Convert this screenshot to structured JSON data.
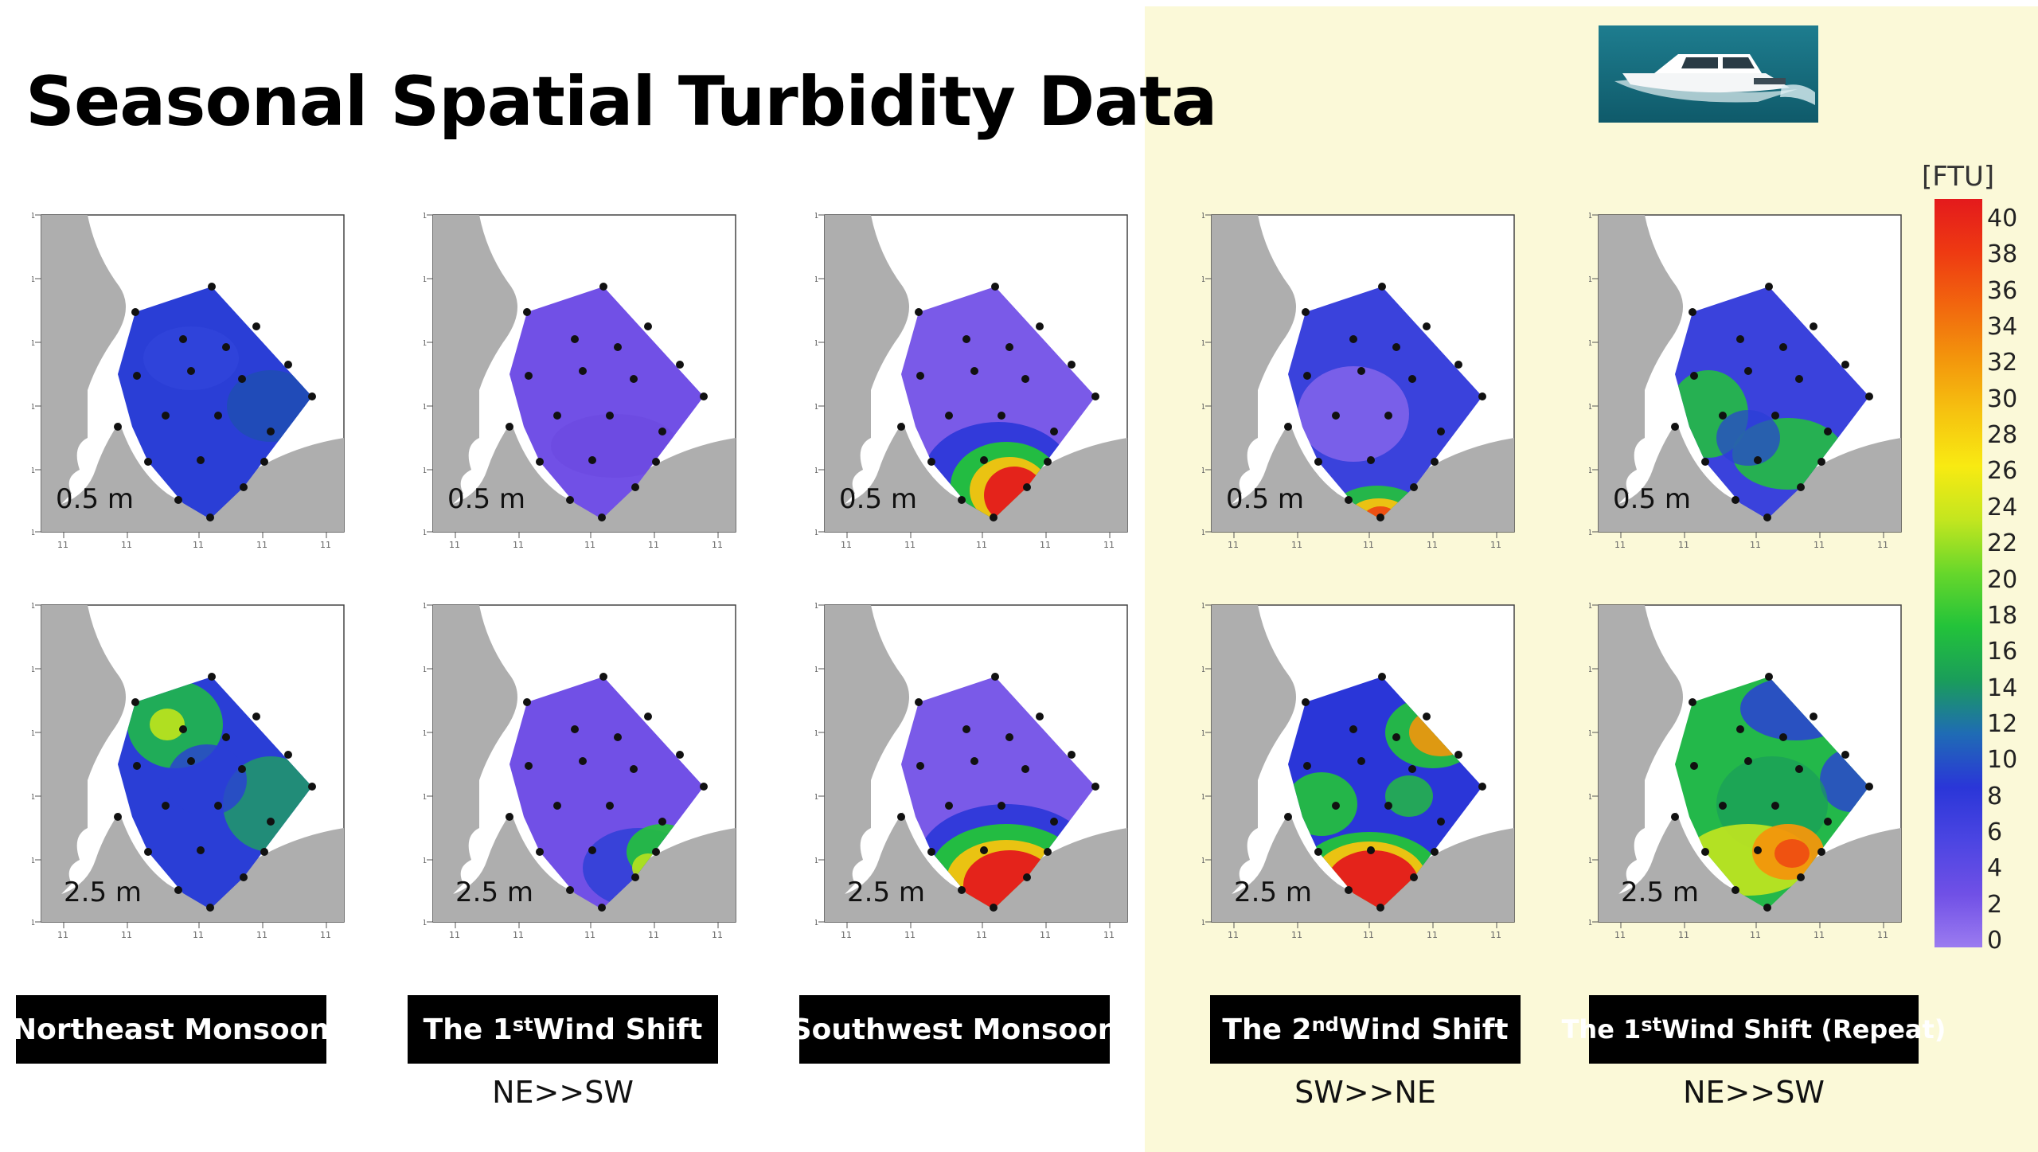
{
  "title": "Seasonal Spatial Turbidity Data",
  "colors": {
    "land": "#aeaeae",
    "water": "#ffffff",
    "highlight_panel": "#fbf9d8",
    "caption_bg": "#000000",
    "station_dot": "#111111"
  },
  "boat_image": {
    "icon": "speedboat-photo"
  },
  "colorbar": {
    "unit": "[FTU]",
    "ticks": [
      "40",
      "38",
      "36",
      "34",
      "32",
      "30",
      "28",
      "26",
      "24",
      "22",
      "20",
      "18",
      "16",
      "14",
      "12",
      "10",
      "8",
      "6",
      "4",
      "2",
      "0"
    ],
    "stops": [
      "#e41a1c",
      "#ee3a12",
      "#f2670e",
      "#f3960c",
      "#f6c310",
      "#f8ea12",
      "#c3e61f",
      "#67d72b",
      "#23c33a",
      "#1a9d5a",
      "#1f6cb4",
      "#2a36d8",
      "#4b45e2",
      "#7050e6",
      "#9b7bf0"
    ]
  },
  "columns": [
    {
      "caption": {
        "pre": "Northeast Monsoon",
        "sup": "",
        "post": ""
      },
      "direction": "",
      "panels": [
        {
          "depth": "0.5 m",
          "scheme": "blue-uniform-dark"
        },
        {
          "depth": "2.5 m",
          "scheme": "green-blue"
        }
      ]
    },
    {
      "caption": {
        "pre": "The 1",
        "sup": "st",
        "post": " Wind Shift"
      },
      "direction": "NE>>SW",
      "panels": [
        {
          "depth": "0.5 m",
          "scheme": "purple-uniform"
        },
        {
          "depth": "2.5 m",
          "scheme": "purple-green-corner"
        }
      ]
    },
    {
      "caption": {
        "pre": "Southwest Monsoon",
        "sup": "",
        "post": ""
      },
      "direction": "",
      "panels": [
        {
          "depth": "0.5 m",
          "scheme": "purple-red-south"
        },
        {
          "depth": "2.5 m",
          "scheme": "purple-red-south-wide"
        }
      ]
    },
    {
      "caption": {
        "pre": "The 2",
        "sup": "nd",
        "post": " Wind Shift"
      },
      "direction": "SW>>NE",
      "panels": [
        {
          "depth": "0.5 m",
          "scheme": "blue-orange-tip"
        },
        {
          "depth": "2.5 m",
          "scheme": "blue-red-multi"
        }
      ]
    },
    {
      "caption": {
        "pre": "The 1",
        "sup": "st",
        "post": "Wind Shift (Repeat)"
      },
      "direction": "NE>>SW",
      "panels": [
        {
          "depth": "0.5 m",
          "scheme": "blue-green"
        },
        {
          "depth": "2.5 m",
          "scheme": "green-orange"
        }
      ]
    }
  ]
}
